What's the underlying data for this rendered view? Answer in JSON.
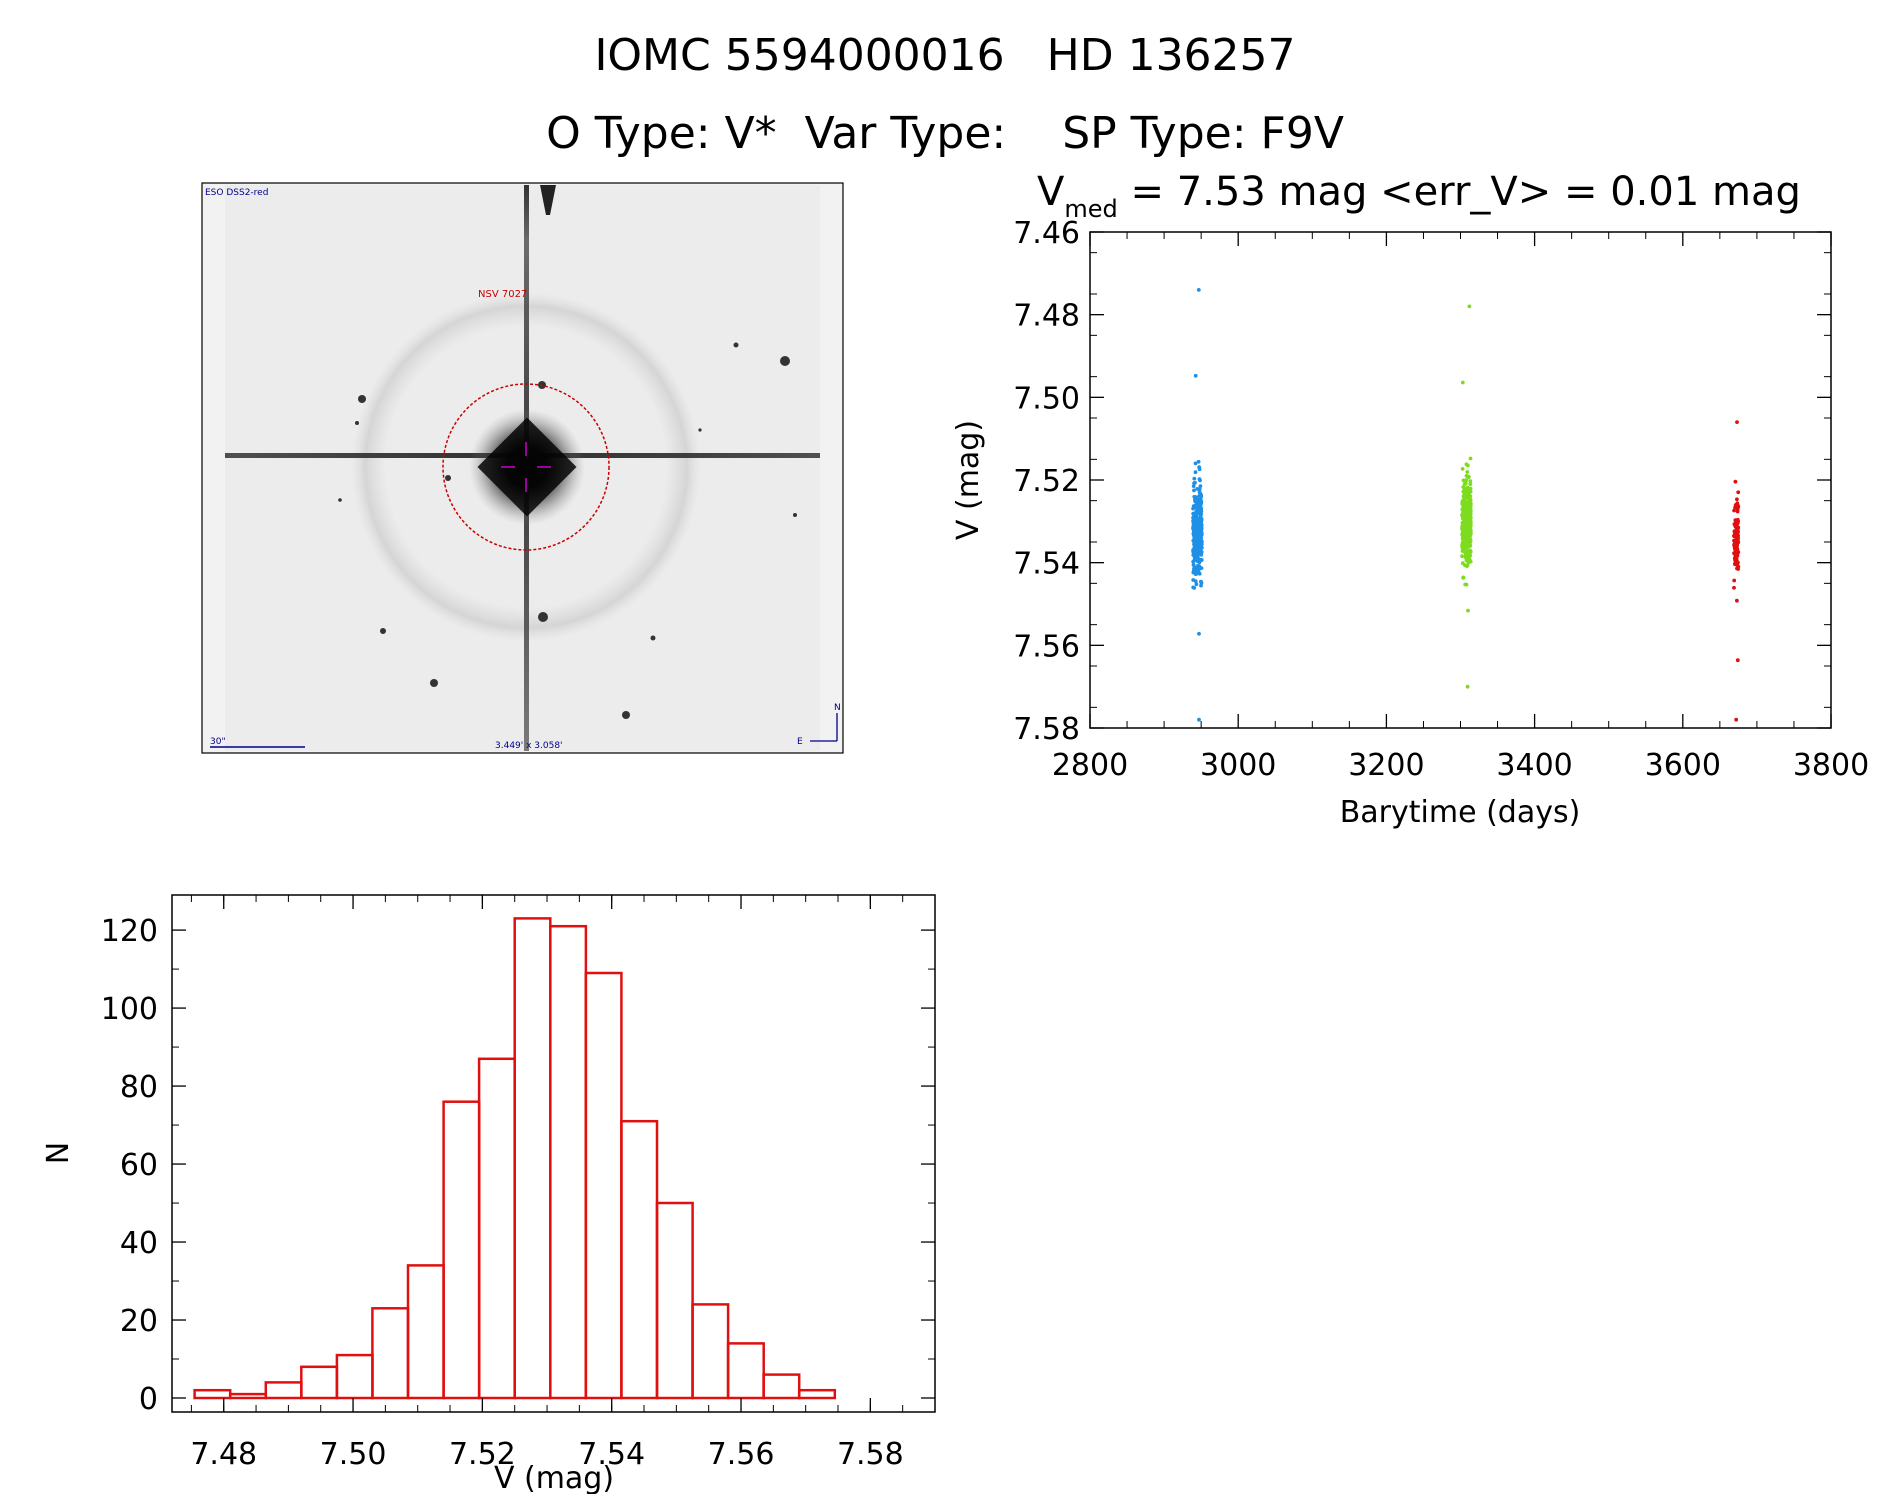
{
  "header": {
    "title_line1": "IOMC 5594000016   HD 136257",
    "title_line2": "O Type: V*  Var Type:    SP Type: F9V"
  },
  "image": {
    "survey_label": "ESO DSS2-red",
    "object_label": "NSV 7027",
    "scale_label": "30\"",
    "fov_label": "3.449' x 3.058'",
    "north_label": "N",
    "east_label": "E"
  },
  "lightcurve": {
    "title_prefix": "V",
    "title_sub": "med",
    "title_suffix": " = 7.53 mag <err_V> = 0.01 mag",
    "xlabel": "Barytime (days)",
    "ylabel": "V (mag)"
  },
  "colors": {
    "season1": "#1e90e8",
    "season2": "#7ddc1f",
    "season3": "#e01010",
    "histogram": "#e01010",
    "circle": "#cc0000",
    "crosshair": "#cc00cc",
    "annotation_blue": "#00008b"
  },
  "chart_data": [
    {
      "type": "scatter",
      "xlim": [
        2800,
        3800
      ],
      "ylim": [
        7.58,
        7.46
      ],
      "y_inverted": true,
      "x_ticks": [
        2800,
        3000,
        3200,
        3400,
        3600,
        3800
      ],
      "y_ticks": [
        7.46,
        7.48,
        7.5,
        7.52,
        7.54,
        7.56,
        7.58
      ],
      "y_tick_labels": [
        "7.46",
        "7.48",
        "7.50",
        "7.52",
        "7.54",
        "7.56",
        "7.58"
      ],
      "series": [
        {
          "x_center": 2945,
          "x_spread": 6,
          "y_min": 7.474,
          "y_max": 7.578,
          "y_core_min": 7.505,
          "y_core_max": 7.56,
          "count": 330
        },
        {
          "x_center": 3308,
          "x_spread": 6,
          "y_min": 7.478,
          "y_max": 7.57,
          "y_core_min": 7.505,
          "y_core_max": 7.555,
          "count": 340
        },
        {
          "x_center": 3672,
          "x_spread": 3,
          "y_min": 7.506,
          "y_max": 7.578,
          "y_core_min": 7.515,
          "y_core_max": 7.555,
          "count": 120
        }
      ]
    },
    {
      "type": "bar",
      "histogram": true,
      "xlabel": "V (mag)",
      "ylabel": "N",
      "xlim": [
        7.472,
        7.59
      ],
      "ylim": [
        0,
        129
      ],
      "x_ticks": [
        7.48,
        7.5,
        7.52,
        7.54,
        7.56,
        7.58
      ],
      "x_tick_labels": [
        "7.48",
        "7.50",
        "7.52",
        "7.54",
        "7.56",
        "7.58"
      ],
      "y_ticks": [
        0,
        20,
        40,
        60,
        80,
        100,
        120
      ],
      "bin_width": 0.0055,
      "bin_edges_start": 7.4755,
      "values": [
        2,
        1,
        4,
        8,
        11,
        23,
        34,
        76,
        87,
        123,
        121,
        109,
        71,
        50,
        24,
        14,
        6,
        2
      ]
    }
  ]
}
